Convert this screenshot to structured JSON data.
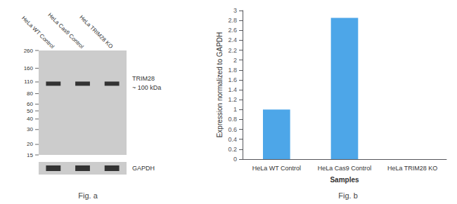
{
  "chart_data": [
    {
      "type": "blot",
      "title": "Fig. a",
      "categories": [
        "HeLa WT Control",
        "HeLa Cas9 Control",
        "HeLa TRIM28 KO"
      ],
      "values": [
        105,
        105,
        105
      ],
      "color": "#333333",
      "log": "y",
      "ylim": [
        15,
        260
      ],
      "yticks": [
        260,
        160,
        110,
        80,
        60,
        50,
        40,
        30,
        20,
        15
      ],
      "annotations": [
        "TRIM28",
        "~ 100 kDa",
        "GAPDH"
      ]
    },
    {
      "type": "bar",
      "title": "Fig. b",
      "categories": [
        "HeLa WT Control",
        "HeLa Cas9 Control",
        "HeLa TRIM28 KO"
      ],
      "values": [
        1.0,
        2.85,
        0.0
      ],
      "color": "#4da6e8",
      "xlabel": "Samples",
      "ylabel": "Expression normalized to GAPDH",
      "ylim": [
        0,
        3.0
      ],
      "yticks": [
        0,
        0.2,
        0.4,
        0.6,
        0.8,
        1,
        1.2,
        1.4,
        1.6,
        1.8,
        2,
        2.2,
        2.4,
        2.6,
        2.8,
        3
      ],
      "grid": false
    }
  ]
}
